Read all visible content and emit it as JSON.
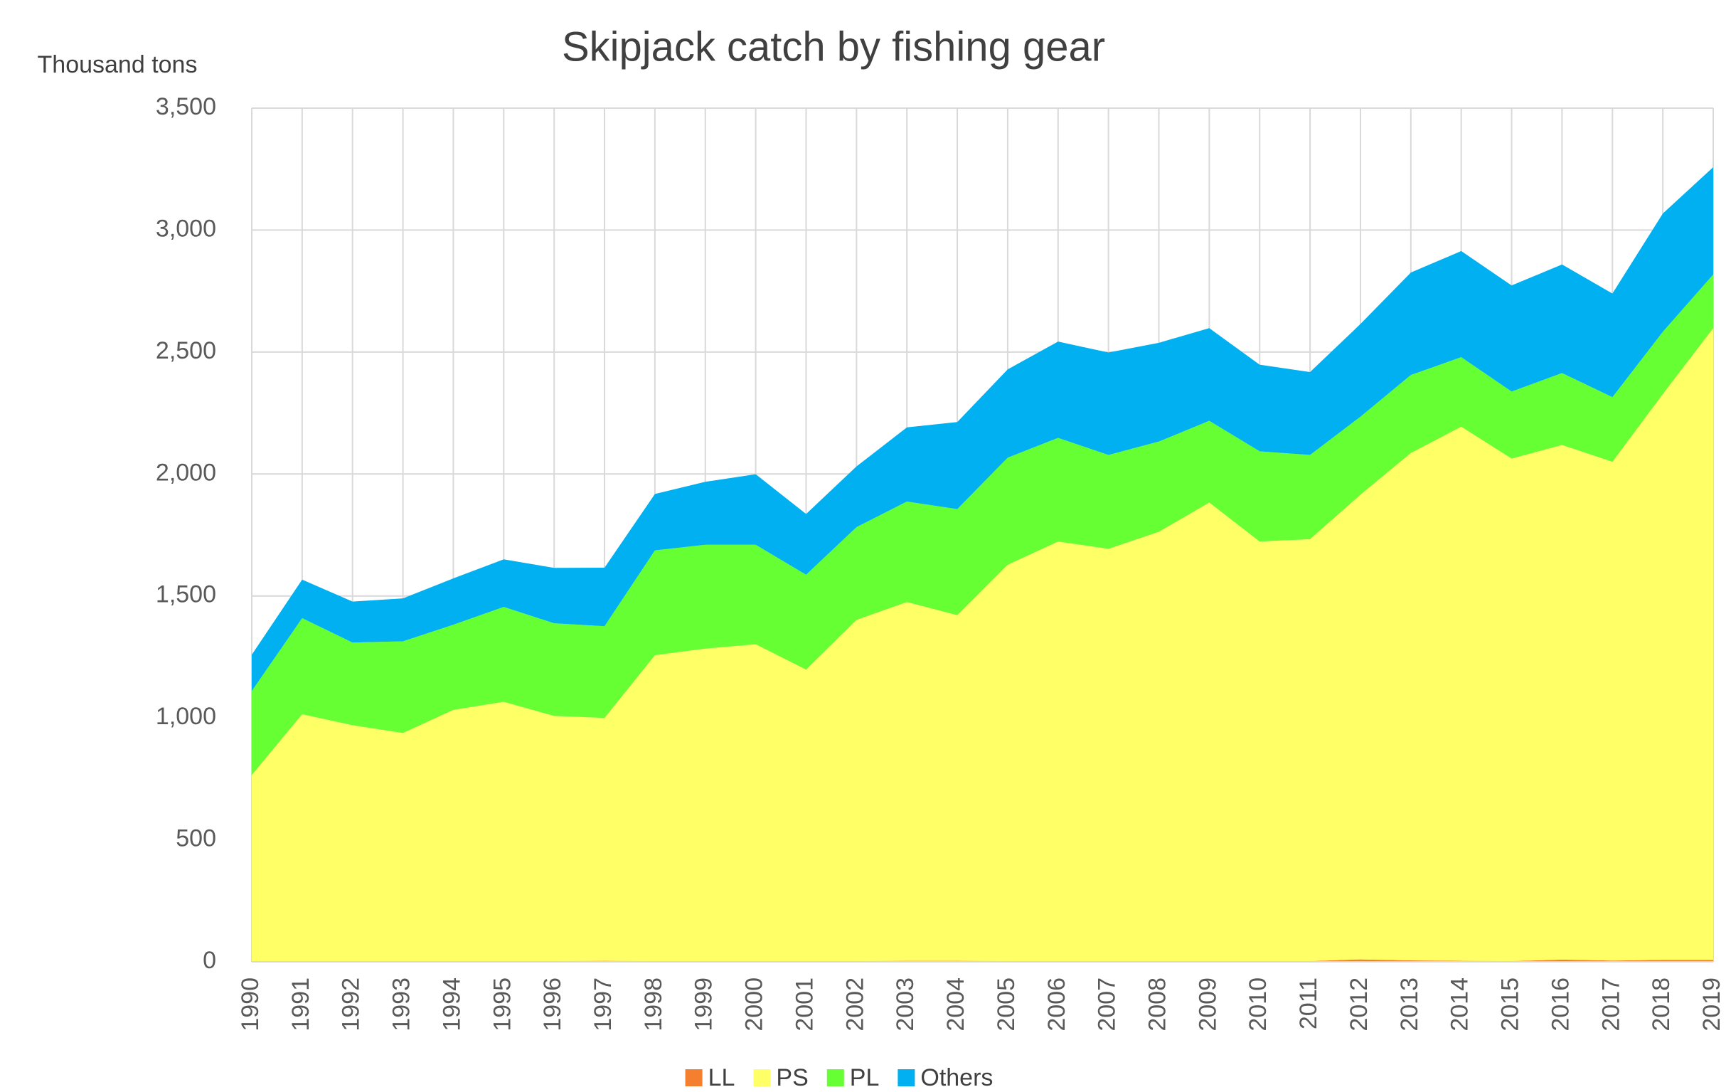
{
  "chart_data": {
    "type": "stacked_area",
    "title": "Skipjack catch by fishing gear",
    "y_axis_label": "Thousand tons",
    "categories": [
      "1990",
      "1991",
      "1992",
      "1993",
      "1994",
      "1995",
      "1996",
      "1997",
      "1998",
      "1999",
      "2000",
      "2001",
      "2002",
      "2003",
      "2004",
      "2005",
      "2006",
      "2007",
      "2008",
      "2009",
      "2010",
      "2011",
      "2012",
      "2013",
      "2014",
      "2015",
      "2016",
      "2017",
      "2018",
      "2019"
    ],
    "series": [
      {
        "name": "LL",
        "color": "#f4802f",
        "values": [
          1,
          1,
          1,
          1,
          1,
          2,
          3,
          4,
          3,
          3,
          3,
          3,
          3,
          4,
          4,
          3,
          3,
          3,
          3,
          3,
          3,
          3,
          10,
          6,
          4,
          3,
          9,
          5,
          8,
          8
        ]
      },
      {
        "name": "PS",
        "color": "#ffff66",
        "values": [
          765,
          1014,
          969,
          937,
          1032,
          1064,
          1005,
          996,
          1254,
          1281,
          1299,
          1195,
          1399,
          1471,
          1417,
          1625,
          1720,
          1690,
          1760,
          1880,
          1720,
          1730,
          1905,
          2080,
          2190,
          2060,
          2110,
          2045,
          2320,
          2590
        ]
      },
      {
        "name": "PL",
        "color": "#66ff33",
        "values": [
          344,
          394,
          339,
          376,
          349,
          389,
          380,
          376,
          430,
          426,
          408,
          389,
          380,
          412,
          435,
          439,
          425,
          385,
          370,
          335,
          370,
          345,
          320,
          320,
          285,
          275,
          295,
          265,
          255,
          220
        ]
      },
      {
        "name": "Others",
        "color": "#00b0f0",
        "values": [
          149,
          158,
          168,
          176,
          190,
          195,
          227,
          240,
          231,
          258,
          289,
          249,
          249,
          304,
          357,
          362,
          395,
          420,
          405,
          380,
          355,
          340,
          380,
          420,
          435,
          435,
          445,
          425,
          485,
          440
        ]
      }
    ],
    "ylim": [
      0,
      3500
    ],
    "yticks": [
      0,
      {
        "value": 500,
        "label": "500"
      },
      {
        "value": 1000,
        "label": "1,000"
      },
      {
        "value": 1500,
        "label": "1,500"
      },
      {
        "value": 2000,
        "label": "2,000"
      },
      {
        "value": 2500,
        "label": "2,500"
      },
      {
        "value": 3000,
        "label": "3,000"
      },
      {
        "value": 3500,
        "label": "3,500"
      }
    ],
    "grid": true,
    "legend": "bottom"
  }
}
